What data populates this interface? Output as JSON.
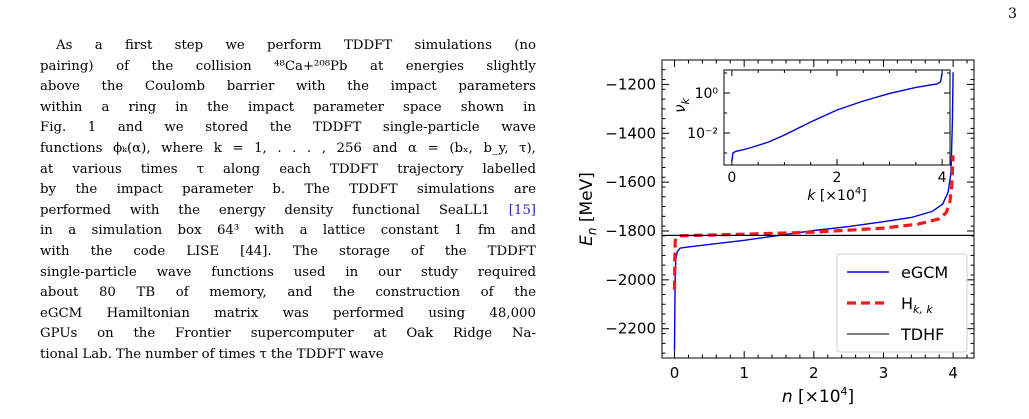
{
  "page_number": "3",
  "text_lines": [
    "As a first step we perform TDDFT simulations (no",
    "pairing) of the collision ⁴⁸Ca+²⁰⁸Pb at energies slightly",
    "above the Coulomb barrier with the impact parameters",
    "within a ring in the impact parameter space shown in",
    "Fig. 1 and we stored the TDDFT single-particle wave",
    "functions ϕₖ(α), where k = 1, . . . , 256 and α = (bₓ, b_y, τ),",
    "at various times τ along each TDDFT trajectory labelled",
    "by the impact parameter b. The TDDFT simulations are",
    "performed with the energy density functional SeaLL1 [15]",
    "in a simulation box 64³ with a lattice constant 1 fm and",
    "with the code LISE [44]. The storage of the TDDFT",
    "single-particle wave functions used in our study required",
    "about 80 TB of memory, and the construction of the",
    "eGCM Hamiltonian matrix was performed using 48,000",
    "GPUs on the Frontier supercomputer at Oak Ridge Na-",
    "tional Lab. The number of times τ the TDDFT wave"
  ],
  "chart_data": [
    {
      "type": "line",
      "xlabel": "n [×10⁴]",
      "ylabel": "Eₙ [MeV]",
      "xlim": [
        -0.18,
        4.3
      ],
      "ylim": [
        -2320,
        -1100
      ],
      "xticks": [
        0,
        1,
        2,
        3,
        4
      ],
      "xtick_labels": [
        "0",
        "1",
        "2",
        "3",
        "4"
      ],
      "yticks": [
        -1200,
        -1400,
        -1600,
        -1800,
        -2000,
        -2200
      ],
      "ytick_labels": [
        "−1200",
        "−1400",
        "−1600",
        "−1800",
        "−2000",
        "−2200"
      ],
      "legend_position": "lower-right",
      "series": [
        {
          "name": "eGCM",
          "color": "#0000dd",
          "style": "solid",
          "x": [
            0.0,
            0.005,
            0.01,
            0.02,
            0.04,
            0.08,
            0.2,
            0.5,
            1.0,
            1.5,
            2.0,
            2.5,
            3.0,
            3.4,
            3.7,
            3.85,
            3.93,
            3.97,
            3.99,
            4.0
          ],
          "y": [
            -2290,
            -2100,
            -1980,
            -1915,
            -1885,
            -1870,
            -1865,
            -1855,
            -1838,
            -1818,
            -1798,
            -1782,
            -1762,
            -1745,
            -1720,
            -1690,
            -1640,
            -1560,
            -1350,
            -1150
          ]
        },
        {
          "name": "Hₖ,ₖ",
          "color": "#ee1c1c",
          "style": "dashed",
          "x": [
            0.0,
            0.005,
            0.01,
            0.03,
            0.08,
            0.3,
            1.0,
            2.0,
            3.0,
            3.5,
            3.8,
            3.9,
            3.95,
            3.98,
            4.0
          ],
          "y": [
            -2040,
            -1900,
            -1840,
            -1825,
            -1820,
            -1818,
            -1813,
            -1805,
            -1788,
            -1772,
            -1750,
            -1725,
            -1690,
            -1620,
            -1490
          ]
        },
        {
          "name": "TDHF",
          "color": "#000000",
          "style": "solid",
          "x": [
            -0.18,
            4.3
          ],
          "y": [
            -1818,
            -1818
          ]
        }
      ]
    },
    {
      "type": "line",
      "inset": true,
      "xlabel": "k [×10⁴]",
      "ylabel": "νₖ",
      "xlim": [
        -0.15,
        4.15
      ],
      "yscale": "log",
      "ylim_log10": [
        -3.6,
        1.15
      ],
      "xticks": [
        0,
        2,
        4
      ],
      "xtick_labels": [
        "0",
        "2",
        "4"
      ],
      "yticks_log10": [
        0,
        -2
      ],
      "ytick_labels": [
        "10⁰",
        "10⁻²"
      ],
      "series": [
        {
          "name": "",
          "color": "#0000dd",
          "x": [
            0.0,
            0.02,
            0.05,
            0.1,
            0.2,
            0.4,
            0.7,
            1.0,
            1.5,
            2.0,
            2.5,
            3.0,
            3.5,
            3.9,
            3.97,
            4.0
          ],
          "log10_y": [
            -3.4,
            -3.0,
            -2.95,
            -2.9,
            -2.85,
            -2.7,
            -2.45,
            -2.1,
            -1.45,
            -0.85,
            -0.4,
            -0.02,
            0.28,
            0.45,
            0.55,
            1.0
          ]
        }
      ]
    }
  ],
  "legend": [
    {
      "label": "eGCM",
      "color": "#0000dd",
      "style": "solid"
    },
    {
      "label": "H",
      "sub": "k, k",
      "color": "#ee1c1c",
      "style": "dashed"
    },
    {
      "label": "TDHF",
      "color": "#000000",
      "style": "solid"
    }
  ]
}
